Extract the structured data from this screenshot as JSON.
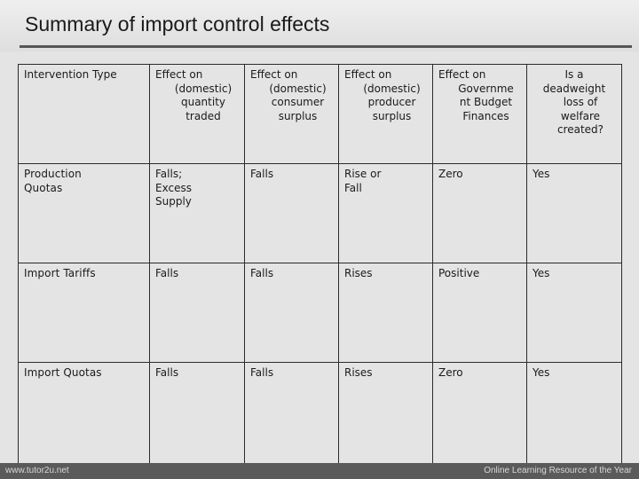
{
  "slide": {
    "title": "Summary of import control effects"
  },
  "table": {
    "header": {
      "intervention_type": "Intervention Type",
      "quantity": [
        "Effect on",
        "(domestic)",
        "quantity",
        "traded"
      ],
      "consumer": [
        "Effect on",
        "(domestic)",
        "consumer",
        "surplus"
      ],
      "producer": [
        "Effect on",
        "(domestic)",
        "producer",
        "surplus"
      ],
      "government": [
        "Effect on",
        "Governme",
        "nt Budget",
        "Finances"
      ],
      "deadweight": [
        "Is a deadweight",
        "loss of",
        "welfare",
        "created?"
      ]
    },
    "rows": [
      {
        "intervention": [
          "Production",
          "Quotas"
        ],
        "quantity": [
          "Falls;",
          "Excess",
          "Supply"
        ],
        "consumer": "Falls",
        "producer": [
          "Rise or",
          "Fall"
        ],
        "government": "Zero",
        "deadweight": "Yes"
      },
      {
        "intervention": [
          "Import Tariffs"
        ],
        "quantity": [
          "Falls"
        ],
        "consumer": "Falls",
        "producer": [
          "Rises"
        ],
        "government": "Positive",
        "deadweight": "Yes"
      },
      {
        "intervention": [
          "Import Quotas"
        ],
        "quantity": [
          "Falls"
        ],
        "consumer": "Falls",
        "producer": [
          "Rises"
        ],
        "government": "Zero",
        "deadweight": "Yes"
      }
    ]
  },
  "footer": {
    "left": "www.tutor2u.net",
    "right": "Online Learning Resource of the Year"
  }
}
